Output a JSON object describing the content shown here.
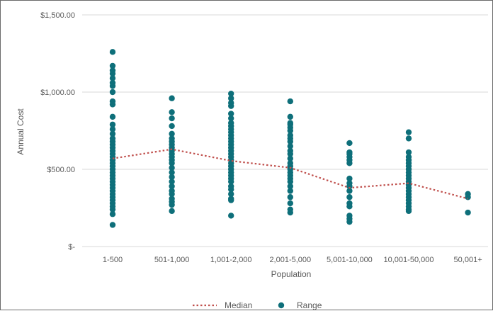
{
  "chart_data": {
    "type": "scatter",
    "title": "",
    "xlabel": "Population",
    "ylabel": "Annual Cost",
    "categories": [
      "1-500",
      "501-1,000",
      "1,001-2,000",
      "2,001-5,000",
      "5,001-10,000",
      "10,001-50,000",
      "50,001+"
    ],
    "ylim": [
      0,
      1500
    ],
    "yticks": [
      {
        "value": 0,
        "label": "$-"
      },
      {
        "value": 500,
        "label": "$500.00"
      },
      {
        "value": 1000,
        "label": "$1,000.00"
      },
      {
        "value": 1500,
        "label": "$1,500.00"
      }
    ],
    "grid": true,
    "legend_position": "bottom",
    "series": [
      {
        "name": "Median",
        "kind": "line",
        "style": "dotted",
        "color": "#c0504d",
        "values": [
          570,
          630,
          555,
          510,
          380,
          410,
          310
        ]
      },
      {
        "name": "Range",
        "kind": "scatter",
        "color": "#0e6f7a",
        "points": [
          [
            1260,
            1170,
            1140,
            1120,
            1090,
            1060,
            1040,
            1000,
            940,
            920,
            840,
            790,
            760,
            730,
            700,
            680,
            660,
            640,
            620,
            600,
            580,
            560,
            540,
            520,
            500,
            480,
            460,
            440,
            420,
            400,
            380,
            360,
            340,
            320,
            300,
            280,
            260,
            240,
            210,
            140
          ],
          [
            960,
            870,
            830,
            780,
            730,
            700,
            680,
            660,
            640,
            620,
            600,
            580,
            560,
            540,
            510,
            480,
            450,
            420,
            390,
            360,
            340,
            310,
            290,
            270,
            230
          ],
          [
            990,
            960,
            930,
            910,
            860,
            830,
            800,
            780,
            760,
            740,
            720,
            700,
            680,
            660,
            640,
            620,
            600,
            580,
            560,
            540,
            520,
            500,
            480,
            460,
            440,
            420,
            390,
            370,
            340,
            310,
            300,
            200
          ],
          [
            940,
            840,
            800,
            790,
            770,
            750,
            720,
            700,
            680,
            650,
            620,
            600,
            570,
            540,
            520,
            500,
            480,
            460,
            440,
            420,
            390,
            360,
            320,
            280,
            240,
            220
          ],
          [
            670,
            610,
            600,
            580,
            560,
            540,
            440,
            410,
            390,
            360,
            320,
            280,
            260,
            200,
            180,
            160
          ],
          [
            740,
            700,
            610,
            580,
            560,
            540,
            520,
            500,
            480,
            460,
            440,
            420,
            400,
            380,
            360,
            340,
            320,
            300,
            280,
            260,
            240,
            230
          ],
          [
            340,
            320,
            220
          ]
        ]
      }
    ]
  }
}
